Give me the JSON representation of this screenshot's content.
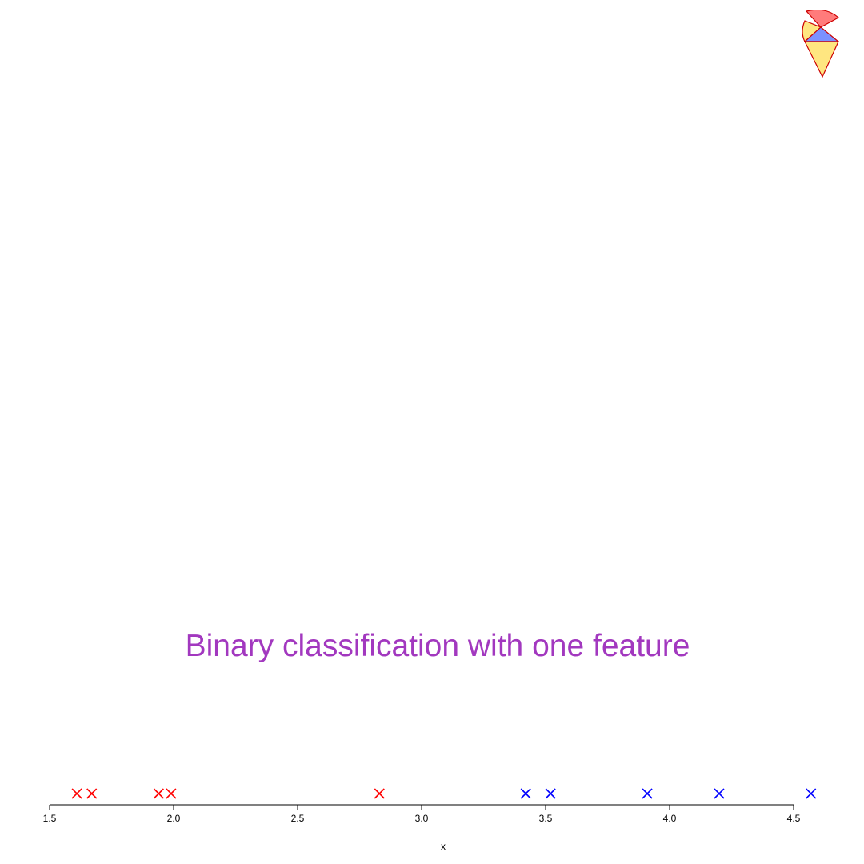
{
  "title": "Binary classification with one feature",
  "colors": {
    "title": "#a238bf",
    "class_red": "#ff0000",
    "class_blue": "#0000ff",
    "axis": "#000000"
  },
  "logo": {
    "icon": "ice-cream-cone-logo",
    "colors": [
      "#ff7b7b",
      "#ffe680",
      "#7b91ff",
      "#cc0000"
    ]
  },
  "chart_data": {
    "type": "scatter",
    "title": "Binary classification with one feature",
    "xlabel": "x",
    "ylabel": "",
    "xlim": [
      1.5,
      4.5
    ],
    "xticks": [
      "1.5",
      "2.0",
      "2.5",
      "3.0",
      "3.5",
      "4.0",
      "4.5"
    ],
    "grid": false,
    "legend": "none",
    "marker": "x",
    "series": [
      {
        "color": "#ff0000",
        "x": [
          1.61,
          1.67,
          1.94,
          1.99,
          2.83
        ]
      },
      {
        "color": "#0000ff",
        "x": [
          3.42,
          3.52,
          3.91,
          4.2,
          4.57
        ]
      }
    ]
  }
}
